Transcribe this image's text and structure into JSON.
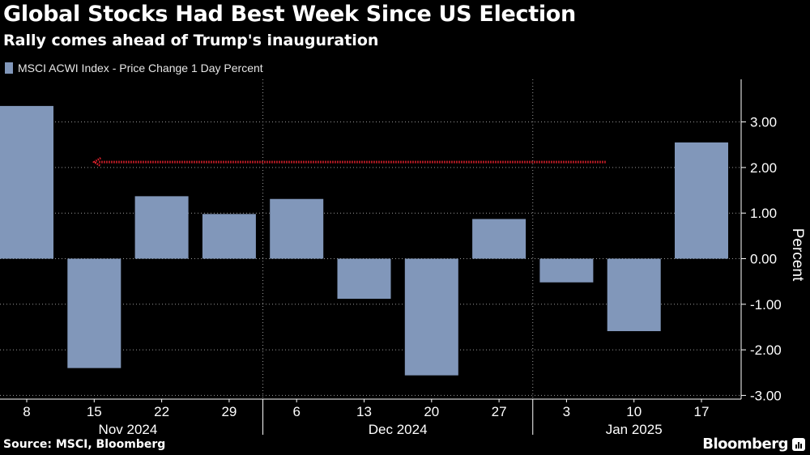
{
  "header": {
    "title": "Global Stocks Had Best Week Since US Election",
    "subtitle": "Rally comes ahead of Trump's inauguration"
  },
  "footer": {
    "source": "Source: MSCI, Bloomberg",
    "brand": "Bloomberg"
  },
  "colors": {
    "background": "#000000",
    "bar": "#8197ba",
    "annotation_arrow": "#e0202c",
    "grid": "#9a9a9a"
  },
  "chart_data": {
    "type": "bar",
    "title": "Global Stocks Had Best Week Since US Election",
    "subtitle": "Rally comes ahead of Trump's inauguration",
    "legend": [
      "MSCI ACWI Index - Price Change 1 Day Percent"
    ],
    "categories": [
      "8",
      "15",
      "22",
      "29",
      "6",
      "13",
      "20",
      "27",
      "3",
      "10",
      "17"
    ],
    "month_labels": [
      "Nov 2024",
      "Dec 2024",
      "Jan 2025"
    ],
    "month_spans": [
      [
        0,
        3
      ],
      [
        4,
        7
      ],
      [
        8,
        10
      ]
    ],
    "series": [
      {
        "name": "MSCI ACWI Index - Price Change 1 Day Percent",
        "values": [
          3.35,
          -2.4,
          1.37,
          0.98,
          1.31,
          -0.88,
          -2.56,
          0.87,
          -0.52,
          -1.59,
          2.55
        ]
      }
    ],
    "ylim": [
      -3.2,
      3.8
    ],
    "yticks": [
      3.0,
      2.0,
      1.0,
      0.0,
      -1.0,
      -2.0,
      -3.0
    ],
    "ytick_labels": [
      "3.00",
      "2.00",
      "1.00",
      "0.00",
      "-1.00",
      "-2.00",
      "-3.00"
    ],
    "ylabel": "Percent",
    "y_axis_side": "right",
    "grid": true,
    "annotation": {
      "type": "arrow",
      "style": "dotted",
      "direction": "left",
      "y": 2.12,
      "from_category_index": 9,
      "to_category_index": 1
    }
  }
}
